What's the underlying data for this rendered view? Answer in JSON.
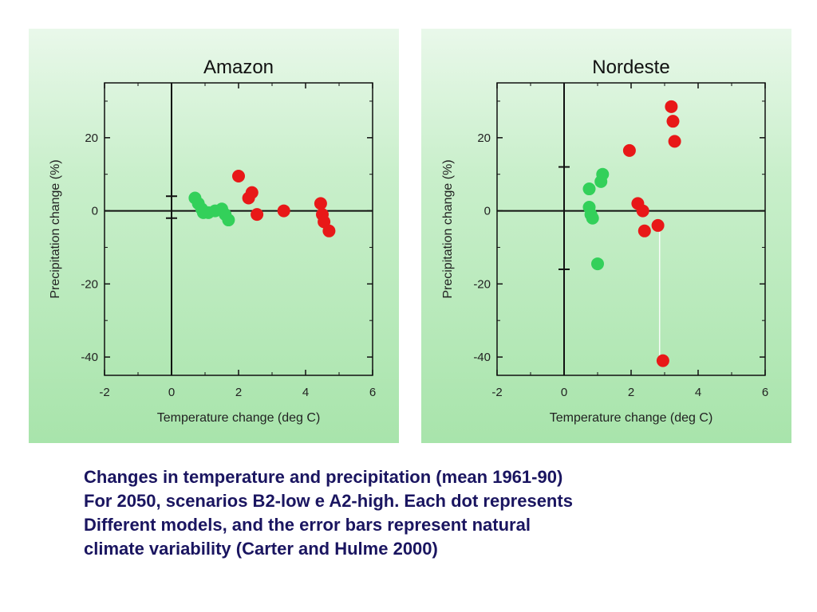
{
  "chart_data": [
    {
      "type": "scatter",
      "title": "Amazon",
      "xlabel": "Temperature change (deg C)",
      "ylabel": "Precipitation change (%)",
      "xlim": [
        -2,
        6
      ],
      "ylim": [
        -45,
        35
      ],
      "xticks": [
        -2,
        0,
        2,
        4,
        6
      ],
      "yticks": [
        20,
        0,
        -20,
        -40
      ],
      "grid": false,
      "series": [
        {
          "color": "#33d05a",
          "points": [
            [
              0.7,
              3.5
            ],
            [
              0.8,
              2
            ],
            [
              0.9,
              0.5
            ],
            [
              1.1,
              -0.5
            ],
            [
              1.3,
              0
            ],
            [
              1.5,
              0.5
            ],
            [
              1.6,
              -1
            ],
            [
              1.7,
              -2.5
            ],
            [
              0.95,
              -0.5
            ]
          ]
        },
        {
          "color": "#e81818",
          "points": [
            [
              2.0,
              9.5
            ],
            [
              2.3,
              3.5
            ],
            [
              2.4,
              5
            ],
            [
              2.55,
              -1
            ],
            [
              3.35,
              0
            ],
            [
              4.45,
              2
            ],
            [
              4.5,
              -1
            ],
            [
              4.55,
              -3
            ],
            [
              4.7,
              -5.5
            ]
          ]
        }
      ],
      "error_bar": {
        "x": 0,
        "low": -2,
        "high": 4
      }
    },
    {
      "type": "scatter",
      "title": "Nordeste",
      "xlabel": "Temperature change (deg C)",
      "ylabel": "Precipitation change (%)",
      "xlim": [
        -2,
        6
      ],
      "ylim": [
        -45,
        35
      ],
      "xticks": [
        -2,
        0,
        2,
        4,
        6
      ],
      "yticks": [
        20,
        0,
        -20,
        -40
      ],
      "grid": false,
      "series": [
        {
          "color": "#33d05a",
          "points": [
            [
              0.75,
              6
            ],
            [
              0.75,
              1
            ],
            [
              0.8,
              -1
            ],
            [
              0.85,
              -2
            ],
            [
              1.1,
              8
            ],
            [
              1.15,
              10
            ],
            [
              1.0,
              -14.5
            ]
          ]
        },
        {
          "color": "#e81818",
          "points": [
            [
              1.95,
              16.5
            ],
            [
              2.2,
              2
            ],
            [
              2.35,
              0
            ],
            [
              2.4,
              -5.5
            ],
            [
              2.8,
              -4
            ],
            [
              2.95,
              -41
            ],
            [
              3.2,
              28.5
            ],
            [
              3.25,
              24.5
            ],
            [
              3.3,
              19
            ]
          ]
        }
      ],
      "error_bar": {
        "x": 0,
        "low": -16,
        "high": 12
      },
      "vertical_line": {
        "x": 2.85,
        "y_from": -4,
        "y_to": -40
      }
    }
  ],
  "caption": {
    "lines": [
      "Changes in temperature and precipitation (mean 1961-90)",
      "For 2050, scenarios B2-low e A2-high.  Each dot represents",
      "Different models, and the error bars represent natural",
      "climate variability  (Carter and Hulme 2000)"
    ]
  }
}
